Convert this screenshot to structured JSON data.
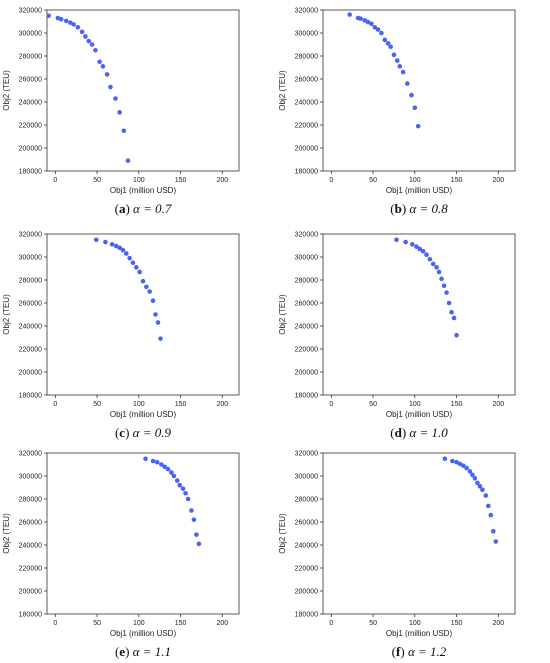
{
  "point_color": "#4b64f0",
  "chart_data": [
    {
      "type": "scatter",
      "panel": "a",
      "caption_letter": "a",
      "caption_rest": "α = 0.7",
      "xlabel": "Obj1 (million USD)",
      "ylabel": "Obj2 (TEU)",
      "xlim": [
        -10,
        220
      ],
      "ylim": [
        180000,
        320000
      ],
      "xticks": [
        0,
        50,
        100,
        150,
        200
      ],
      "yticks": [
        180000,
        200000,
        220000,
        240000,
        260000,
        280000,
        300000,
        320000
      ],
      "points": [
        [
          -8,
          315000
        ],
        [
          3,
          313000
        ],
        [
          7,
          312000
        ],
        [
          13,
          310500
        ],
        [
          18,
          309000
        ],
        [
          22,
          307500
        ],
        [
          27,
          305000
        ],
        [
          32,
          301000
        ],
        [
          36,
          297000
        ],
        [
          40,
          293000
        ],
        [
          44,
          290000
        ],
        [
          48,
          285000
        ],
        [
          53,
          275000
        ],
        [
          57,
          271000
        ],
        [
          62,
          264000
        ],
        [
          66,
          253000
        ],
        [
          72,
          243000
        ],
        [
          77,
          231000
        ],
        [
          82,
          215000
        ],
        [
          87,
          189000
        ]
      ]
    },
    {
      "type": "scatter",
      "panel": "b",
      "caption_letter": "b",
      "caption_rest": "α = 0.8",
      "xlabel": "Obj1 (million USD)",
      "ylabel": "Obj2 (TEU)",
      "xlim": [
        -10,
        220
      ],
      "ylim": [
        180000,
        320000
      ],
      "xticks": [
        0,
        50,
        100,
        150,
        200
      ],
      "yticks": [
        180000,
        200000,
        220000,
        240000,
        260000,
        280000,
        300000,
        320000
      ],
      "points": [
        [
          22,
          316000
        ],
        [
          32,
          313000
        ],
        [
          35,
          312500
        ],
        [
          40,
          311000
        ],
        [
          44,
          309500
        ],
        [
          48,
          308000
        ],
        [
          52,
          305000
        ],
        [
          56,
          303000
        ],
        [
          60,
          300000
        ],
        [
          64,
          294000
        ],
        [
          68,
          291000
        ],
        [
          71,
          288000
        ],
        [
          75,
          281000
        ],
        [
          79,
          276000
        ],
        [
          82,
          271000
        ],
        [
          86,
          266000
        ],
        [
          91,
          256000
        ],
        [
          96,
          246000
        ],
        [
          100,
          235000
        ],
        [
          104,
          219000
        ]
      ]
    },
    {
      "type": "scatter",
      "panel": "c",
      "caption_letter": "c",
      "caption_rest": "α = 0.9",
      "xlabel": "Obj1 (million USD)",
      "ylabel": "Obj2 (TEU)",
      "xlim": [
        -10,
        220
      ],
      "ylim": [
        180000,
        320000
      ],
      "xticks": [
        0,
        50,
        100,
        150,
        200
      ],
      "yticks": [
        180000,
        200000,
        220000,
        240000,
        260000,
        280000,
        300000,
        320000
      ],
      "points": [
        [
          49,
          315000
        ],
        [
          60,
          313000
        ],
        [
          68,
          311000
        ],
        [
          73,
          309500
        ],
        [
          77,
          308000
        ],
        [
          81,
          306000
        ],
        [
          85,
          303000
        ],
        [
          89,
          299000
        ],
        [
          93,
          295000
        ],
        [
          97,
          291000
        ],
        [
          101,
          287000
        ],
        [
          105,
          279000
        ],
        [
          109,
          274000
        ],
        [
          113,
          270000
        ],
        [
          117,
          262000
        ],
        [
          120,
          250000
        ],
        [
          123,
          243000
        ],
        [
          126,
          229000
        ]
      ]
    },
    {
      "type": "scatter",
      "panel": "d",
      "caption_letter": "d",
      "caption_rest": "α = 1.0",
      "xlabel": "Obj1 (million USD)",
      "ylabel": "Obj2 (TEU)",
      "xlim": [
        -10,
        220
      ],
      "ylim": [
        180000,
        320000
      ],
      "xticks": [
        0,
        50,
        100,
        150,
        200
      ],
      "yticks": [
        180000,
        200000,
        220000,
        240000,
        260000,
        280000,
        300000,
        320000
      ],
      "points": [
        [
          78,
          315000
        ],
        [
          89,
          313000
        ],
        [
          97,
          311000
        ],
        [
          102,
          309000
        ],
        [
          106,
          307000
        ],
        [
          110,
          305000
        ],
        [
          114,
          302000
        ],
        [
          118,
          298000
        ],
        [
          122,
          294000
        ],
        [
          126,
          291000
        ],
        [
          129,
          287000
        ],
        [
          132,
          281000
        ],
        [
          135,
          275000
        ],
        [
          138,
          269000
        ],
        [
          141,
          260000
        ],
        [
          144,
          252000
        ],
        [
          147,
          247000
        ],
        [
          150,
          232000
        ]
      ]
    },
    {
      "type": "scatter",
      "panel": "e",
      "caption_letter": "e",
      "caption_rest": "α = 1.1",
      "xlabel": "Obj1 (million USD)",
      "ylabel": "Obj2 (TEU)",
      "xlim": [
        -10,
        220
      ],
      "ylim": [
        180000,
        320000
      ],
      "xticks": [
        0,
        50,
        100,
        150,
        200
      ],
      "yticks": [
        180000,
        200000,
        220000,
        240000,
        260000,
        280000,
        300000,
        320000
      ],
      "points": [
        [
          108,
          315000
        ],
        [
          117,
          313000
        ],
        [
          122,
          312000
        ],
        [
          127,
          310000
        ],
        [
          131,
          308000
        ],
        [
          135,
          306000
        ],
        [
          139,
          303000
        ],
        [
          142,
          300000
        ],
        [
          146,
          296000
        ],
        [
          149,
          292000
        ],
        [
          153,
          289000
        ],
        [
          156,
          285000
        ],
        [
          159,
          280000
        ],
        [
          163,
          270000
        ],
        [
          166,
          262000
        ],
        [
          169,
          249000
        ],
        [
          172,
          241000
        ]
      ]
    },
    {
      "type": "scatter",
      "panel": "f",
      "caption_letter": "f",
      "caption_rest": "α = 1.2",
      "xlabel": "Obj1 (million USD)",
      "ylabel": "Obj2 (TEU)",
      "xlim": [
        -10,
        220
      ],
      "ylim": [
        180000,
        320000
      ],
      "xticks": [
        0,
        50,
        100,
        150,
        200
      ],
      "yticks": [
        180000,
        200000,
        220000,
        240000,
        260000,
        280000,
        300000,
        320000
      ],
      "points": [
        [
          136,
          315000
        ],
        [
          145,
          313000
        ],
        [
          150,
          312000
        ],
        [
          154,
          310500
        ],
        [
          158,
          309000
        ],
        [
          162,
          307000
        ],
        [
          166,
          304000
        ],
        [
          169,
          301000
        ],
        [
          172,
          298000
        ],
        [
          175,
          294000
        ],
        [
          178,
          291000
        ],
        [
          181,
          288000
        ],
        [
          185,
          283000
        ],
        [
          188,
          274000
        ],
        [
          191,
          266000
        ],
        [
          194,
          252000
        ],
        [
          197,
          243000
        ]
      ]
    }
  ]
}
